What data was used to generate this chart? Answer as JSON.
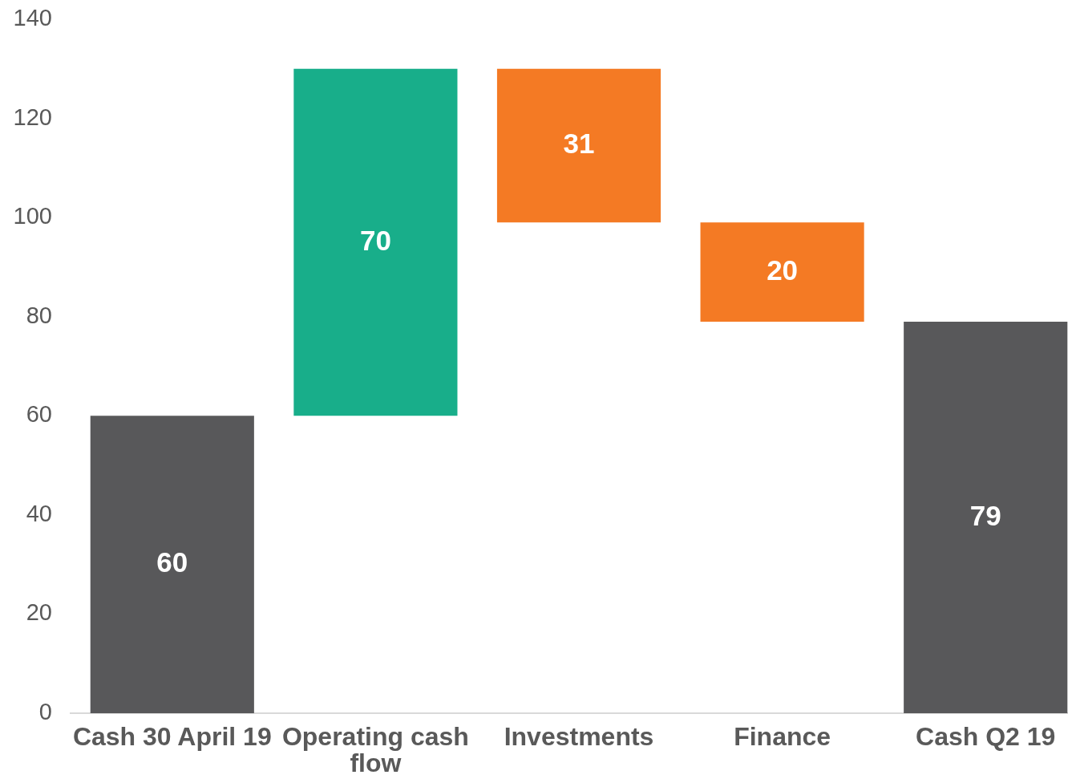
{
  "chart_data": {
    "type": "bar",
    "categories": [
      "Cash 30 April 19",
      "Operating cash flow",
      "Investments",
      "Finance",
      "Cash Q2 19"
    ],
    "values": [
      60,
      70,
      31,
      20,
      79
    ],
    "base": [
      0,
      60,
      99,
      79,
      0
    ],
    "colors": [
      "#58585a",
      "#18ae8a",
      "#f47a24",
      "#f47a24",
      "#58585a"
    ],
    "ylim": [
      0,
      140
    ],
    "yticks": [
      0,
      20,
      40,
      60,
      80,
      100,
      120,
      140
    ],
    "data_labels": true
  }
}
